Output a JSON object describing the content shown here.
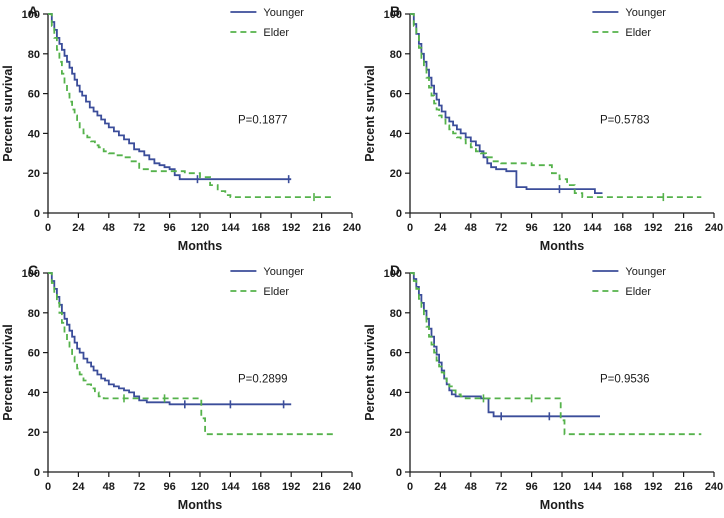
{
  "figure": {
    "background": "#ffffff",
    "xlabel": "Months",
    "ylabel": "Percent survival",
    "legend": [
      "Younger",
      "Elder"
    ]
  },
  "chart_data": [
    {
      "type": "line",
      "subtype": "kaplan-meier-step",
      "panel": "A",
      "xlabel": "Months",
      "ylabel": "Percent survival",
      "xlim": [
        0,
        240
      ],
      "xticks": [
        0,
        24,
        48,
        72,
        96,
        120,
        144,
        168,
        192,
        216,
        240
      ],
      "ylim": [
        0,
        100
      ],
      "yticks": [
        0,
        20,
        40,
        60,
        80,
        100
      ],
      "p_value": "P=0.1877",
      "p_pos": [
        150,
        45
      ],
      "series": [
        {
          "name": "Younger",
          "color": "#3b4d9a",
          "dash": "solid",
          "points": [
            [
              0,
              100
            ],
            [
              3,
              96
            ],
            [
              5,
              92
            ],
            [
              7,
              88
            ],
            [
              9,
              85
            ],
            [
              11,
              82
            ],
            [
              13,
              79
            ],
            [
              15,
              76
            ],
            [
              17,
              73
            ],
            [
              19,
              70
            ],
            [
              21,
              67
            ],
            [
              23,
              64
            ],
            [
              25,
              61
            ],
            [
              27,
              59
            ],
            [
              30,
              56
            ],
            [
              33,
              53
            ],
            [
              36,
              51
            ],
            [
              39,
              49
            ],
            [
              42,
              47
            ],
            [
              45,
              45
            ],
            [
              48,
              43
            ],
            [
              52,
              41
            ],
            [
              56,
              39
            ],
            [
              60,
              37
            ],
            [
              64,
              35
            ],
            [
              68,
              32
            ],
            [
              72,
              31
            ],
            [
              76,
              29
            ],
            [
              80,
              27
            ],
            [
              84,
              25
            ],
            [
              88,
              24
            ],
            [
              92,
              23
            ],
            [
              96,
              22
            ],
            [
              100,
              19
            ],
            [
              104,
              17
            ],
            [
              192,
              17
            ]
          ],
          "censors": [
            118,
            190
          ]
        },
        {
          "name": "Elder",
          "color": "#55b24b",
          "dash": "dashed",
          "points": [
            [
              0,
              100
            ],
            [
              3,
              94
            ],
            [
              5,
              88
            ],
            [
              7,
              82
            ],
            [
              9,
              76
            ],
            [
              11,
              70
            ],
            [
              13,
              65
            ],
            [
              15,
              60
            ],
            [
              17,
              56
            ],
            [
              19,
              52
            ],
            [
              21,
              49
            ],
            [
              23,
              46
            ],
            [
              25,
              43
            ],
            [
              28,
              40
            ],
            [
              31,
              38
            ],
            [
              34,
              36
            ],
            [
              37,
              34
            ],
            [
              40,
              33
            ],
            [
              44,
              31
            ],
            [
              48,
              30
            ],
            [
              54,
              29
            ],
            [
              60,
              28
            ],
            [
              66,
              26
            ],
            [
              72,
              22
            ],
            [
              80,
              21
            ],
            [
              96,
              21
            ],
            [
              108,
              20
            ],
            [
              120,
              18
            ],
            [
              128,
              14
            ],
            [
              134,
              11
            ],
            [
              140,
              9
            ],
            [
              144,
              8
            ],
            [
              226,
              8
            ]
          ],
          "censors": [
            210
          ]
        }
      ]
    },
    {
      "type": "line",
      "subtype": "kaplan-meier-step",
      "panel": "B",
      "xlabel": "Months",
      "ylabel": "Percent survival",
      "xlim": [
        0,
        240
      ],
      "xticks": [
        0,
        24,
        48,
        72,
        96,
        120,
        144,
        168,
        192,
        216,
        240
      ],
      "ylim": [
        0,
        100
      ],
      "yticks": [
        0,
        20,
        40,
        60,
        80,
        100
      ],
      "p_value": "P=0.5783",
      "p_pos": [
        150,
        45
      ],
      "series": [
        {
          "name": "Younger",
          "color": "#3b4d9a",
          "dash": "solid",
          "points": [
            [
              0,
              100
            ],
            [
              3,
              95
            ],
            [
              5,
              90
            ],
            [
              7,
              85
            ],
            [
              9,
              80
            ],
            [
              11,
              76
            ],
            [
              13,
              72
            ],
            [
              15,
              68
            ],
            [
              17,
              64
            ],
            [
              19,
              60
            ],
            [
              21,
              57
            ],
            [
              23,
              54
            ],
            [
              25,
              51
            ],
            [
              28,
              48
            ],
            [
              31,
              46
            ],
            [
              34,
              44
            ],
            [
              37,
              42
            ],
            [
              40,
              40
            ],
            [
              44,
              38
            ],
            [
              48,
              36
            ],
            [
              52,
              34
            ],
            [
              55,
              31
            ],
            [
              58,
              28
            ],
            [
              61,
              25
            ],
            [
              64,
              23
            ],
            [
              68,
              22
            ],
            [
              76,
              21
            ],
            [
              84,
              13
            ],
            [
              92,
              12
            ],
            [
              140,
              12
            ],
            [
              146,
              10
            ],
            [
              152,
              10
            ]
          ],
          "censors": [
            118
          ]
        },
        {
          "name": "Elder",
          "color": "#55b24b",
          "dash": "dashed",
          "points": [
            [
              0,
              100
            ],
            [
              3,
              94
            ],
            [
              5,
              89
            ],
            [
              7,
              83
            ],
            [
              9,
              78
            ],
            [
              11,
              73
            ],
            [
              13,
              68
            ],
            [
              15,
              63
            ],
            [
              17,
              59
            ],
            [
              19,
              55
            ],
            [
              21,
              52
            ],
            [
              23,
              49
            ],
            [
              25,
              47
            ],
            [
              28,
              44
            ],
            [
              31,
              42
            ],
            [
              34,
              40
            ],
            [
              37,
              38
            ],
            [
              40,
              37
            ],
            [
              44,
              35
            ],
            [
              48,
              33
            ],
            [
              52,
              31
            ],
            [
              56,
              30
            ],
            [
              60,
              28
            ],
            [
              66,
              26
            ],
            [
              72,
              25
            ],
            [
              84,
              25
            ],
            [
              96,
              24
            ],
            [
              104,
              24
            ],
            [
              112,
              20
            ],
            [
              118,
              17
            ],
            [
              124,
              14
            ],
            [
              130,
              10
            ],
            [
              136,
              8
            ],
            [
              230,
              8
            ]
          ],
          "censors": [
            200
          ]
        }
      ]
    },
    {
      "type": "line",
      "subtype": "kaplan-meier-step",
      "panel": "C",
      "xlabel": "Months",
      "ylabel": "Percent survival",
      "xlim": [
        0,
        240
      ],
      "xticks": [
        0,
        24,
        48,
        72,
        96,
        120,
        144,
        168,
        192,
        216,
        240
      ],
      "ylim": [
        0,
        100
      ],
      "yticks": [
        0,
        20,
        40,
        60,
        80,
        100
      ],
      "p_value": "P=0.2899",
      "p_pos": [
        150,
        45
      ],
      "series": [
        {
          "name": "Younger",
          "color": "#3b4d9a",
          "dash": "solid",
          "points": [
            [
              0,
              100
            ],
            [
              3,
              96
            ],
            [
              5,
              92
            ],
            [
              7,
              88
            ],
            [
              9,
              84
            ],
            [
              11,
              80
            ],
            [
              13,
              77
            ],
            [
              15,
              74
            ],
            [
              17,
              71
            ],
            [
              19,
              68
            ],
            [
              21,
              65
            ],
            [
              23,
              62
            ],
            [
              25,
              60
            ],
            [
              28,
              57
            ],
            [
              31,
              55
            ],
            [
              34,
              53
            ],
            [
              36,
              51
            ],
            [
              39,
              49
            ],
            [
              42,
              47
            ],
            [
              45,
              46
            ],
            [
              48,
              44
            ],
            [
              52,
              43
            ],
            [
              56,
              42
            ],
            [
              60,
              41
            ],
            [
              64,
              40
            ],
            [
              68,
              38
            ],
            [
              72,
              36
            ],
            [
              78,
              35
            ],
            [
              88,
              35
            ],
            [
              96,
              34
            ],
            [
              192,
              34
            ]
          ],
          "censors": [
            108,
            144,
            186
          ]
        },
        {
          "name": "Elder",
          "color": "#55b24b",
          "dash": "dashed",
          "points": [
            [
              0,
              100
            ],
            [
              3,
              95
            ],
            [
              5,
              90
            ],
            [
              7,
              85
            ],
            [
              9,
              80
            ],
            [
              11,
              75
            ],
            [
              13,
              70
            ],
            [
              15,
              66
            ],
            [
              17,
              62
            ],
            [
              19,
              58
            ],
            [
              21,
              55
            ],
            [
              23,
              52
            ],
            [
              25,
              49
            ],
            [
              28,
              46
            ],
            [
              31,
              44
            ],
            [
              34,
              42
            ],
            [
              37,
              40
            ],
            [
              40,
              38
            ],
            [
              44,
              37
            ],
            [
              118,
              37
            ],
            [
              121,
              27
            ],
            [
              124,
              19
            ],
            [
              226,
              19
            ]
          ],
          "censors": [
            60,
            92
          ]
        }
      ]
    },
    {
      "type": "line",
      "subtype": "kaplan-meier-step",
      "panel": "D",
      "xlabel": "Months",
      "ylabel": "Percent survival",
      "xlim": [
        0,
        240
      ],
      "xticks": [
        0,
        24,
        48,
        72,
        96,
        120,
        144,
        168,
        192,
        216,
        240
      ],
      "ylim": [
        0,
        100
      ],
      "yticks": [
        0,
        20,
        40,
        60,
        80,
        100
      ],
      "p_value": "P=0.9536",
      "p_pos": [
        150,
        45
      ],
      "series": [
        {
          "name": "Younger",
          "color": "#3b4d9a",
          "dash": "solid",
          "points": [
            [
              0,
              100
            ],
            [
              3,
              97
            ],
            [
              5,
              93
            ],
            [
              7,
              89
            ],
            [
              9,
              85
            ],
            [
              11,
              81
            ],
            [
              13,
              77
            ],
            [
              15,
              72
            ],
            [
              17,
              68
            ],
            [
              19,
              63
            ],
            [
              21,
              59
            ],
            [
              23,
              55
            ],
            [
              25,
              51
            ],
            [
              27,
              47
            ],
            [
              29,
              44
            ],
            [
              31,
              41
            ],
            [
              33,
              39
            ],
            [
              36,
              38
            ],
            [
              50,
              38
            ],
            [
              56,
              37
            ],
            [
              62,
              30
            ],
            [
              66,
              28
            ],
            [
              150,
              28
            ]
          ],
          "censors": [
            72,
            110
          ]
        },
        {
          "name": "Elder",
          "color": "#55b24b",
          "dash": "dashed",
          "points": [
            [
              0,
              100
            ],
            [
              3,
              96
            ],
            [
              5,
              92
            ],
            [
              7,
              87
            ],
            [
              9,
              83
            ],
            [
              11,
              78
            ],
            [
              13,
              73
            ],
            [
              15,
              68
            ],
            [
              17,
              64
            ],
            [
              19,
              60
            ],
            [
              21,
              56
            ],
            [
              23,
              53
            ],
            [
              25,
              50
            ],
            [
              27,
              47
            ],
            [
              29,
              45
            ],
            [
              31,
              43
            ],
            [
              33,
              41
            ],
            [
              36,
              39
            ],
            [
              40,
              38
            ],
            [
              44,
              37
            ],
            [
              116,
              37
            ],
            [
              119,
              26
            ],
            [
              122,
              19
            ],
            [
              230,
              19
            ]
          ],
          "censors": [
            58,
            96
          ]
        }
      ]
    }
  ]
}
